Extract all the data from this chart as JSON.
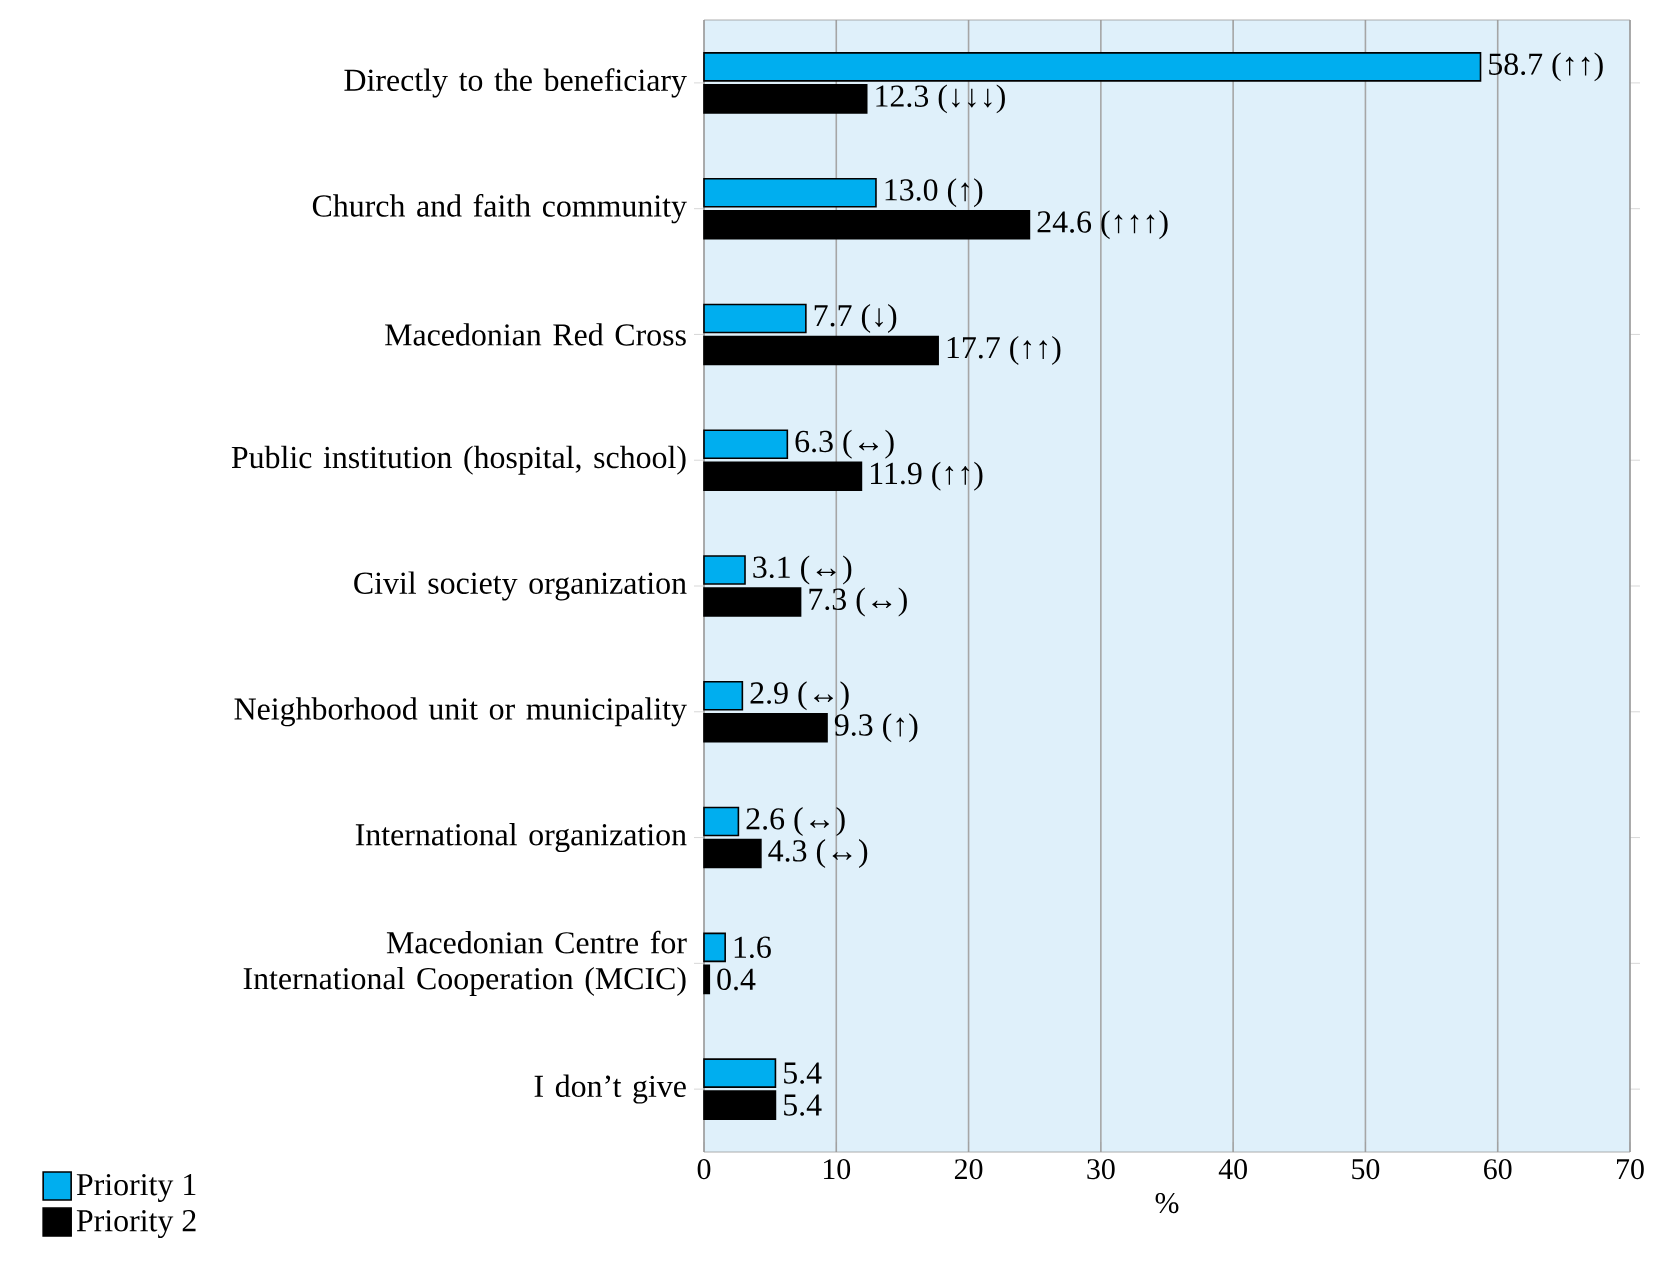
{
  "chart_data": {
    "type": "bar",
    "orientation": "horizontal",
    "categories": [
      "Directly to the beneficiary",
      "Church and faith community",
      "Macedonian Red Cross",
      "Public institution (hospital, school)",
      "Civil society organization",
      "Neighborhood unit or municipality",
      "International organization",
      "Macedonian Centre for International Cooperation (MCIC)",
      "I don’t give"
    ],
    "series": [
      {
        "name": "Priority 1",
        "color": "#00aeef",
        "values": [
          58.7,
          13.0,
          7.7,
          6.3,
          3.1,
          2.9,
          2.6,
          1.6,
          5.4
        ],
        "value_labels": [
          "58.7 (↑↑)",
          "13.0 (↑)",
          "7.7 (↓)",
          "6.3 (↔)",
          "3.1 (↔)",
          "2.9 (↔)",
          "2.6 (↔)",
          "1.6",
          "5.4"
        ]
      },
      {
        "name": "Priority 2",
        "color": "#000000",
        "values": [
          12.3,
          24.6,
          17.7,
          11.9,
          7.3,
          9.3,
          4.3,
          0.4,
          5.4
        ],
        "value_labels": [
          "12.3 (↓↓↓)",
          "24.6 (↑↑↑)",
          "17.7 (↑↑)",
          "11.9 (↑↑)",
          "7.3 (↔)",
          "9.3 (↑)",
          "4.3 (↔)",
          "0.4",
          "5.4"
        ]
      }
    ],
    "xlabel": "%",
    "xlim": [
      0,
      70
    ],
    "xticks": [
      0,
      10,
      20,
      30,
      40,
      50,
      60,
      70
    ],
    "grid": "x",
    "legend": "bottom left"
  }
}
